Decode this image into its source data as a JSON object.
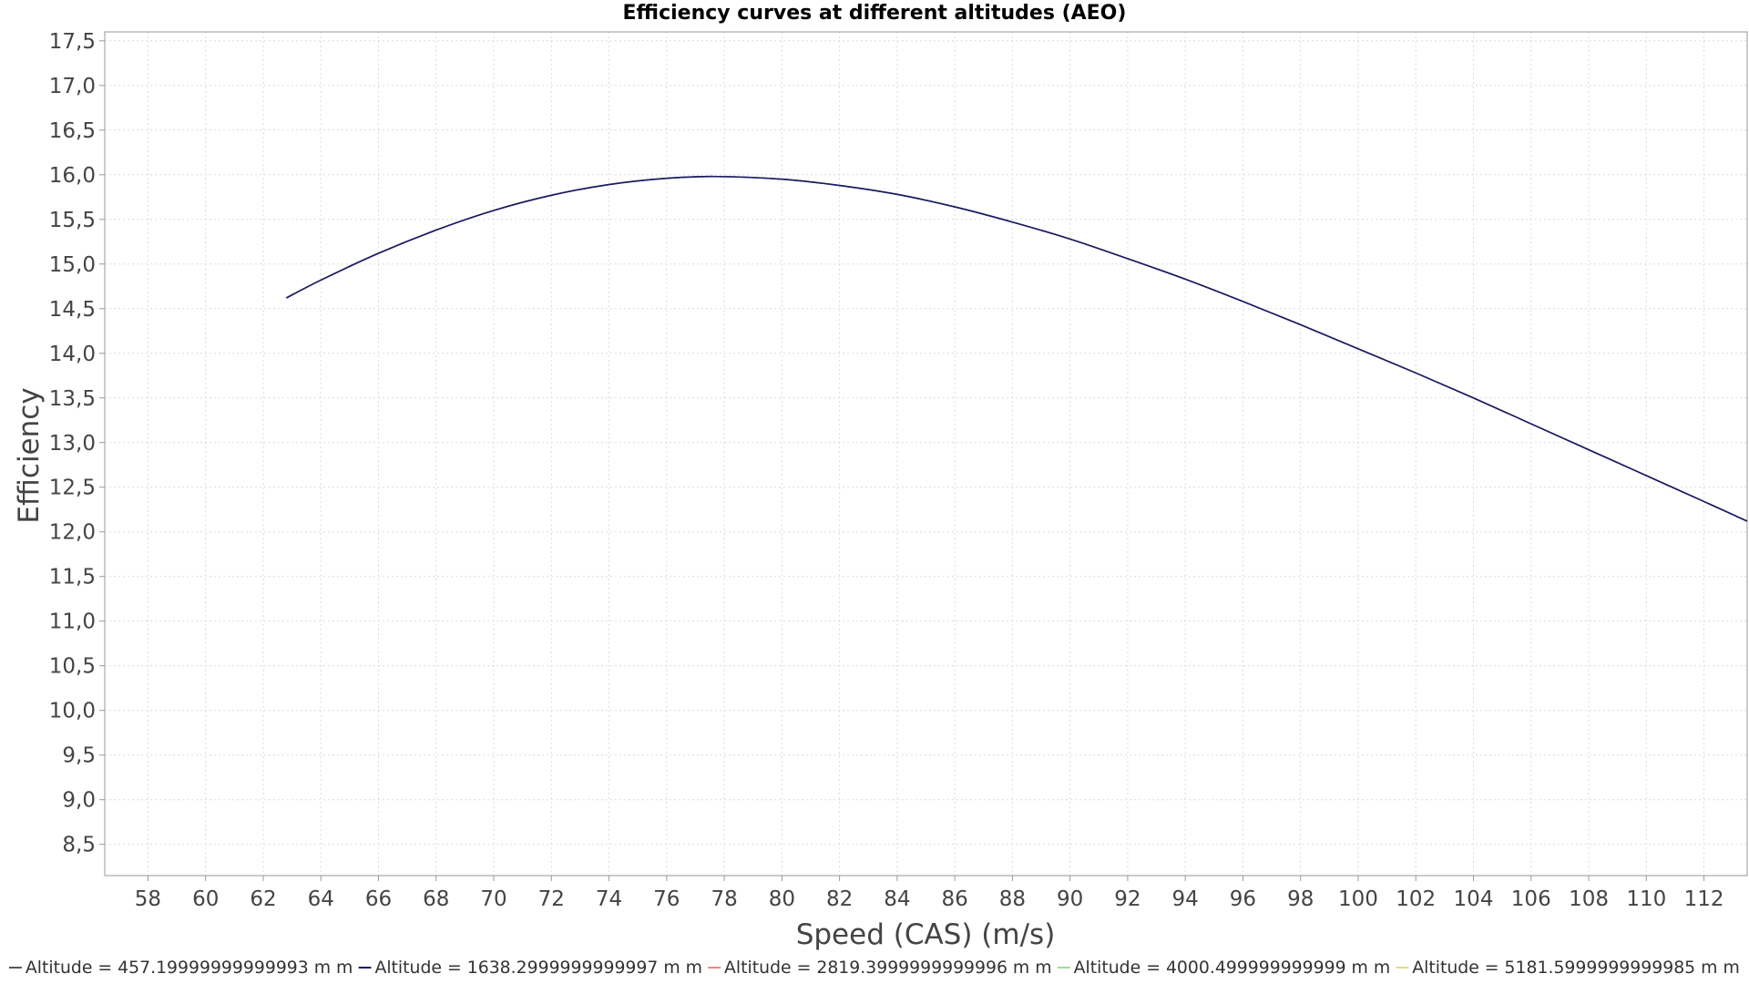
{
  "chart_data": {
    "type": "line",
    "title": "Efficiency curves at different altitudes (AEO)",
    "xlabel": "Speed (CAS) (m/s)",
    "ylabel": "Efficiency",
    "xlim": [
      56.5,
      113.5
    ],
    "ylim": [
      8.15,
      17.6
    ],
    "x_ticks": [
      58,
      60,
      62,
      64,
      66,
      68,
      70,
      72,
      74,
      76,
      78,
      80,
      82,
      84,
      86,
      88,
      90,
      92,
      94,
      96,
      98,
      100,
      102,
      104,
      106,
      108,
      110,
      112
    ],
    "x_tick_labels": [
      "58",
      "60",
      "62",
      "64",
      "66",
      "68",
      "70",
      "72",
      "74",
      "76",
      "78",
      "80",
      "82",
      "84",
      "86",
      "88",
      "90",
      "92",
      "94",
      "96",
      "98",
      "100",
      "102",
      "104",
      "106",
      "108",
      "110",
      "112"
    ],
    "y_ticks": [
      8.5,
      9.0,
      9.5,
      10.0,
      10.5,
      11.0,
      11.5,
      12.0,
      12.5,
      13.0,
      13.5,
      14.0,
      14.5,
      15.0,
      15.5,
      16.0,
      16.5,
      17.0,
      17.5
    ],
    "y_tick_labels": [
      "8,5",
      "9,0",
      "9,5",
      "10,0",
      "10,5",
      "11,0",
      "11,5",
      "12,0",
      "12,5",
      "13,0",
      "13,5",
      "14,0",
      "14,5",
      "15,0",
      "15,5",
      "16,0",
      "16,5",
      "17,0",
      "17,5"
    ],
    "grid": true,
    "legend_position": "bottom",
    "series": [
      {
        "name": "Altitude = 457.19999999999993 m m",
        "color": "#555555",
        "x": [
          62.8,
          64,
          66,
          68,
          70,
          72,
          74,
          76,
          77.7,
          80,
          82,
          84,
          86,
          88,
          90,
          92,
          94,
          96,
          98,
          100,
          102,
          104,
          106,
          108,
          110,
          112,
          113.5
        ],
        "y": [
          14.62,
          14.82,
          15.12,
          15.38,
          15.6,
          15.77,
          15.89,
          15.96,
          15.98,
          15.95,
          15.88,
          15.78,
          15.64,
          15.47,
          15.28,
          15.06,
          14.83,
          14.58,
          14.32,
          14.05,
          13.78,
          13.5,
          13.21,
          12.92,
          12.63,
          12.34,
          12.12
        ]
      },
      {
        "name": "Altitude = 1638.2999999999997 m m",
        "color": "#1a1a66",
        "x": [
          62.8,
          64,
          66,
          68,
          70,
          72,
          74,
          76,
          77.7,
          80,
          82,
          84,
          86,
          88,
          90,
          92,
          94,
          96,
          98,
          100,
          102,
          104,
          106,
          108,
          110,
          112,
          113.5
        ],
        "y": [
          14.62,
          14.82,
          15.12,
          15.38,
          15.6,
          15.77,
          15.89,
          15.96,
          15.98,
          15.95,
          15.88,
          15.78,
          15.64,
          15.47,
          15.28,
          15.06,
          14.83,
          14.58,
          14.32,
          14.05,
          13.78,
          13.5,
          13.21,
          12.92,
          12.63,
          12.34,
          12.12
        ]
      },
      {
        "name": "Altitude = 2819.3999999999996 m m",
        "color": "#ff7f7f",
        "x": [],
        "y": []
      },
      {
        "name": "Altitude = 4000.499999999999 m m",
        "color": "#99dd99",
        "x": [],
        "y": []
      },
      {
        "name": "Altitude = 5181.5999999999985 m m",
        "color": "#dddd88",
        "x": [],
        "y": []
      }
    ]
  }
}
